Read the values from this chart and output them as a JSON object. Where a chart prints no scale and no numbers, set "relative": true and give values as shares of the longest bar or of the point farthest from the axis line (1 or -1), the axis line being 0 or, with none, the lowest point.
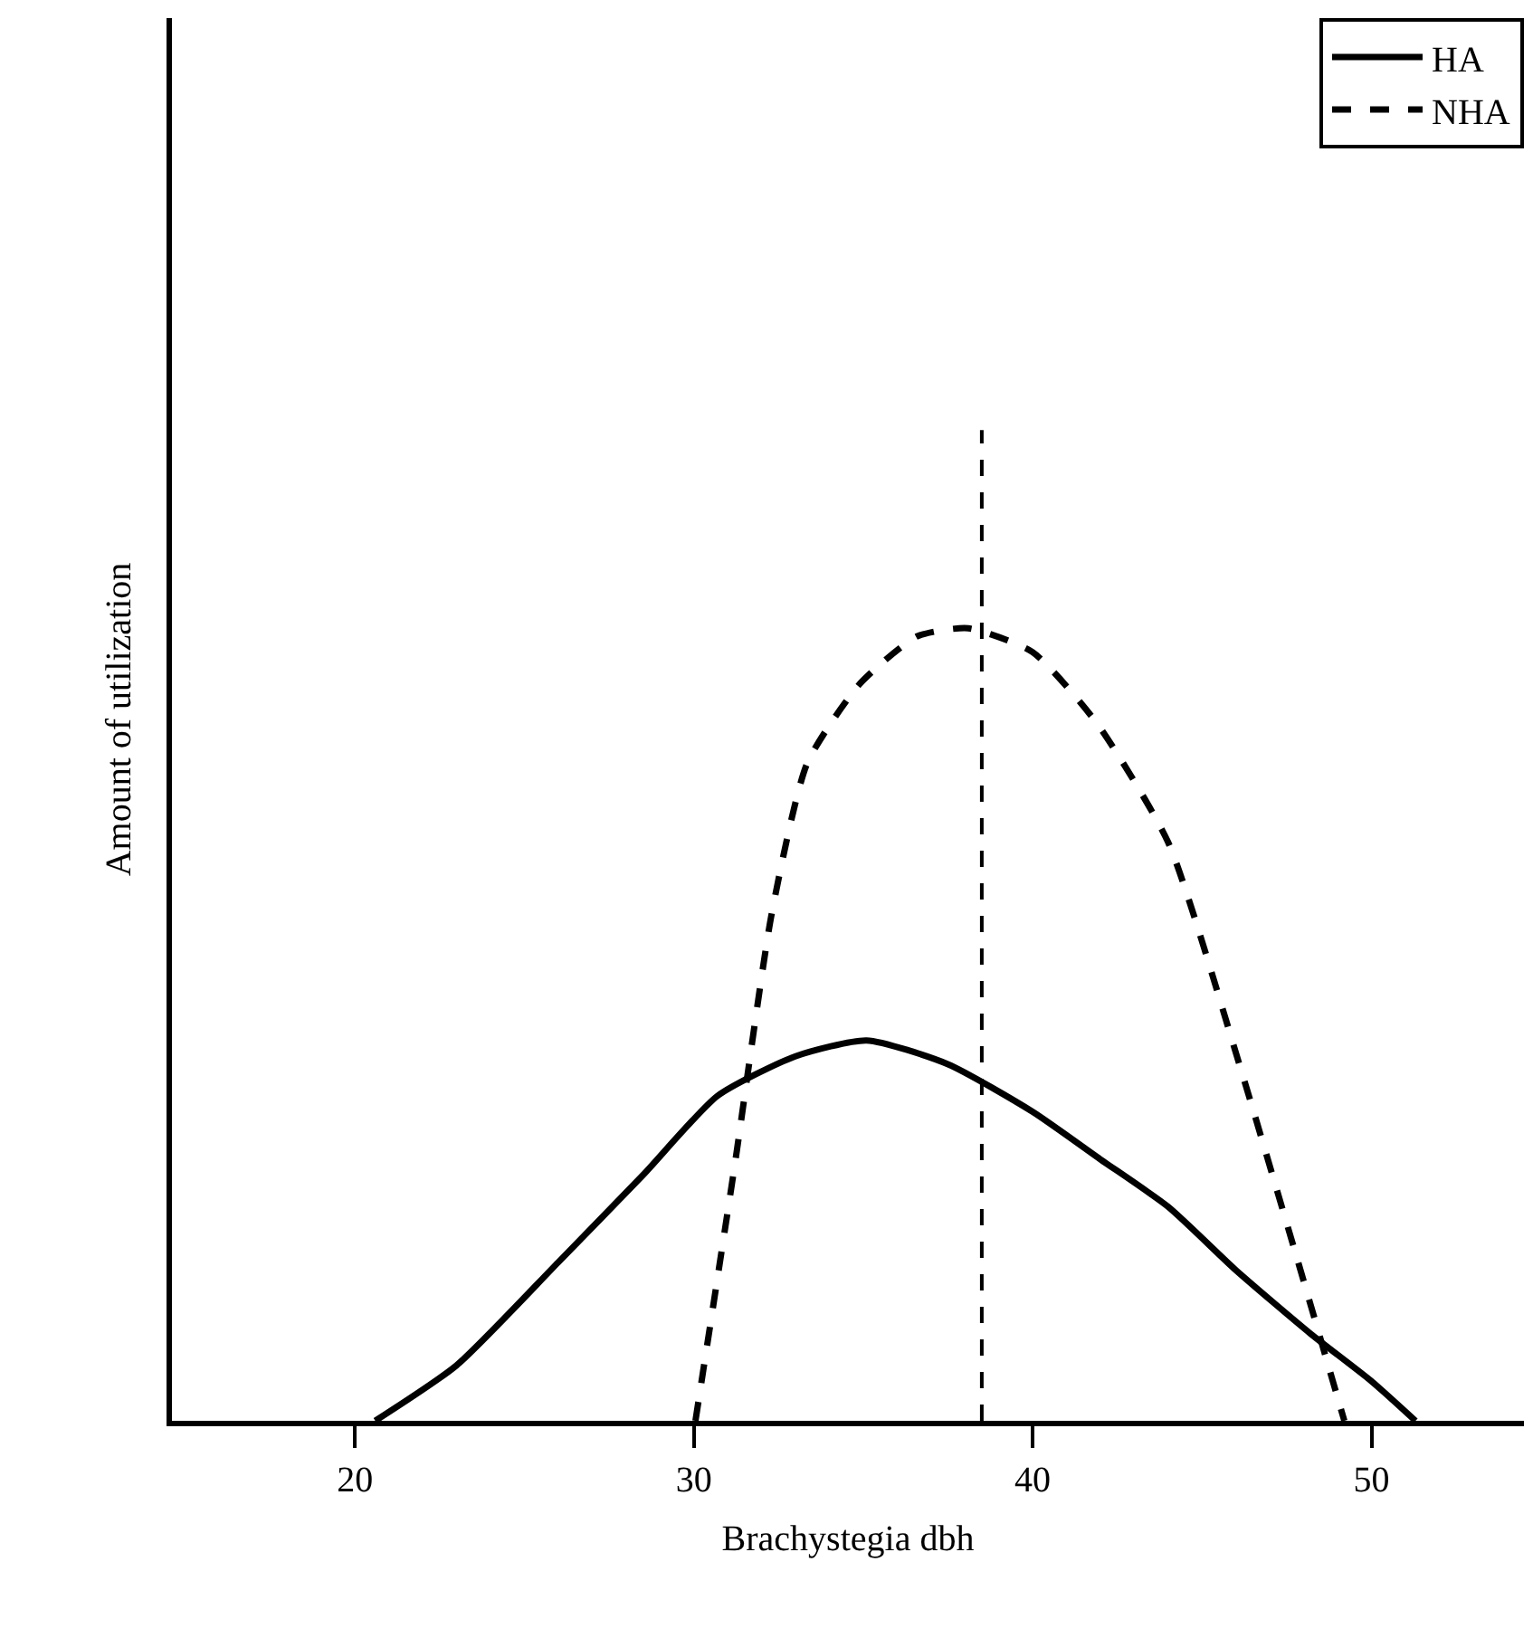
{
  "chart_data": {
    "type": "line",
    "relative": true,
    "xlabel": "Brachystegia dbh",
    "ylabel": "Amount of utilization",
    "xlim": [
      14.6,
      54.5
    ],
    "xticks": [
      20,
      30,
      40,
      50
    ],
    "legend": "top right",
    "marker": "none",
    "series": [
      {
        "name": "HA",
        "color": "#000000",
        "line_style": "solid",
        "x": [
          20.6,
          23,
          26,
          28.5,
          30.7,
          33,
          35.1,
          37.5,
          40,
          42,
          44,
          46,
          48.2,
          50,
          51.3
        ],
        "values": [
          0,
          0.07,
          0.2,
          0.31,
          0.41,
          0.46,
          0.48,
          0.45,
          0.39,
          0.33,
          0.27,
          0.19,
          0.11,
          0.05,
          0
        ]
      },
      {
        "name": "NHA",
        "color": "#000000",
        "line_style": "dashed",
        "x": [
          30.05,
          31.2,
          32.3,
          33.35,
          34.9,
          36.6,
          38.1,
          40,
          41.9,
          44,
          46.1,
          47.7,
          49.2
        ],
        "values": [
          0,
          0.32,
          0.64,
          0.83,
          0.93,
          0.99,
          1,
          0.97,
          0.88,
          0.73,
          0.45,
          0.22,
          0
        ]
      }
    ],
    "ref_lines": [
      {
        "axis": "x",
        "value": 38.5,
        "color": "#000000",
        "line_style": "dashed"
      }
    ]
  }
}
